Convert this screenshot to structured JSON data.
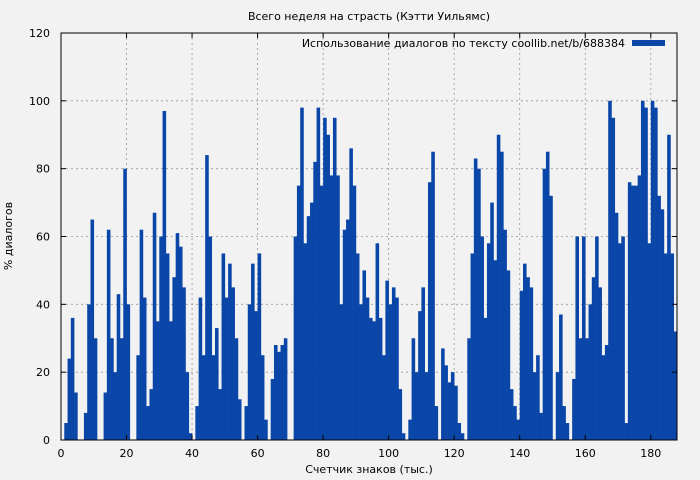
{
  "chart_data": {
    "type": "area",
    "title": "Всего неделя на страсть (Кэтти Уильямс)",
    "xlabel": "Счетчик знаков (тыс.)",
    "ylabel": "% диалогов",
    "xlim": [
      0,
      188
    ],
    "ylim": [
      0,
      120
    ],
    "x_ticks": [
      0,
      20,
      40,
      60,
      80,
      100,
      120,
      140,
      160,
      180
    ],
    "y_ticks": [
      0,
      20,
      40,
      60,
      80,
      100,
      120
    ],
    "grid": true,
    "legend_position": "top-right",
    "series": [
      {
        "name": "Использование диалогов по тексту coollib.net/b/688384",
        "color": "#0a46a8",
        "x": [
          0,
          1,
          2,
          3,
          4,
          5,
          6,
          7,
          8,
          9,
          10,
          11,
          12,
          13,
          14,
          15,
          16,
          17,
          18,
          19,
          20,
          21,
          22,
          23,
          24,
          25,
          26,
          27,
          28,
          29,
          30,
          31,
          32,
          33,
          34,
          35,
          36,
          37,
          38,
          39,
          40,
          41,
          42,
          43,
          44,
          45,
          46,
          47,
          48,
          49,
          50,
          51,
          52,
          53,
          54,
          55,
          56,
          57,
          58,
          59,
          60,
          61,
          62,
          63,
          64,
          65,
          66,
          67,
          68,
          69,
          70,
          71,
          72,
          73,
          74,
          75,
          76,
          77,
          78,
          79,
          80,
          81,
          82,
          83,
          84,
          85,
          86,
          87,
          88,
          89,
          90,
          91,
          92,
          93,
          94,
          95,
          96,
          97,
          98,
          99,
          100,
          101,
          102,
          103,
          104,
          105,
          106,
          107,
          108,
          109,
          110,
          111,
          112,
          113,
          114,
          115,
          116,
          117,
          118,
          119,
          120,
          121,
          122,
          123,
          124,
          125,
          126,
          127,
          128,
          129,
          130,
          131,
          132,
          133,
          134,
          135,
          136,
          137,
          138,
          139,
          140,
          141,
          142,
          143,
          144,
          145,
          146,
          147,
          148,
          149,
          150,
          151,
          152,
          153,
          154,
          155,
          156,
          157,
          158,
          159,
          160,
          161,
          162,
          163,
          164,
          165,
          166,
          167,
          168,
          169,
          170,
          171,
          172,
          173,
          174,
          175,
          176,
          177,
          178,
          179,
          180,
          181,
          182,
          183,
          184,
          185,
          186,
          187
        ],
        "values": [
          0,
          5,
          24,
          36,
          14,
          0,
          0,
          8,
          40,
          65,
          30,
          0,
          0,
          14,
          62,
          30,
          20,
          43,
          30,
          80,
          40,
          0,
          0,
          25,
          62,
          42,
          10,
          15,
          67,
          35,
          60,
          97,
          55,
          35,
          48,
          61,
          57,
          45,
          20,
          2,
          0,
          10,
          42,
          25,
          84,
          60,
          25,
          33,
          15,
          55,
          42,
          52,
          45,
          30,
          12,
          0,
          10,
          40,
          52,
          38,
          55,
          25,
          6,
          0,
          18,
          28,
          26,
          28,
          30,
          0,
          0,
          60,
          75,
          98,
          58,
          66,
          70,
          82,
          98,
          75,
          95,
          90,
          78,
          95,
          78,
          40,
          62,
          65,
          86,
          75,
          55,
          40,
          50,
          42,
          36,
          35,
          58,
          36,
          25,
          47,
          40,
          45,
          42,
          15,
          2,
          0,
          6,
          30,
          20,
          38,
          45,
          20,
          76,
          85,
          10,
          0,
          27,
          22,
          17,
          20,
          16,
          5,
          2,
          0,
          30,
          55,
          83,
          80,
          60,
          36,
          58,
          70,
          53,
          90,
          85,
          62,
          50,
          15,
          10,
          6,
          44,
          52,
          48,
          45,
          20,
          25,
          8,
          80,
          85,
          72,
          0,
          20,
          37,
          10,
          5,
          0,
          18,
          60,
          30,
          60,
          30,
          40,
          48,
          60,
          45,
          25,
          28,
          100,
          95,
          67,
          58,
          60,
          5,
          76,
          75,
          75,
          78,
          100,
          98,
          58,
          100,
          98,
          72,
          68,
          55,
          90,
          55,
          32
        ]
      }
    ]
  }
}
